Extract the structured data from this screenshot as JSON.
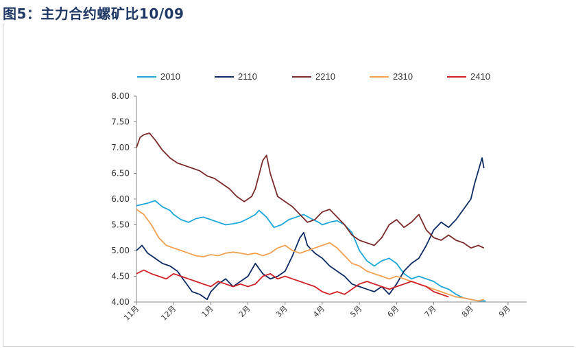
{
  "title": "图5：主力合约螺矿比10/09",
  "chart_data": {
    "type": "line",
    "title": "主力合约螺矿比10/09",
    "xlabel": "",
    "ylabel": "",
    "ylim": [
      4.0,
      8.0
    ],
    "yticks": [
      "4.00",
      "4.50",
      "5.00",
      "5.50",
      "6.00",
      "6.50",
      "7.00",
      "7.50",
      "8.00"
    ],
    "x_tick_labels": [
      "11月",
      "12月",
      "1月",
      "2月",
      "3月",
      "4月",
      "5月",
      "6月",
      "7月",
      "8月",
      "9月"
    ],
    "x_range_months": [
      0,
      10.5
    ],
    "legend_position": "top",
    "series": [
      {
        "name": "2010",
        "color": "#1aa7d8",
        "points": [
          [
            0,
            5.87
          ],
          [
            0.3,
            5.92
          ],
          [
            0.5,
            5.97
          ],
          [
            0.7,
            5.85
          ],
          [
            0.9,
            5.78
          ],
          [
            1.0,
            5.7
          ],
          [
            1.2,
            5.6
          ],
          [
            1.4,
            5.55
          ],
          [
            1.6,
            5.62
          ],
          [
            1.8,
            5.65
          ],
          [
            2.0,
            5.6
          ],
          [
            2.2,
            5.55
          ],
          [
            2.4,
            5.5
          ],
          [
            2.6,
            5.52
          ],
          [
            2.8,
            5.55
          ],
          [
            3.0,
            5.62
          ],
          [
            3.2,
            5.7
          ],
          [
            3.3,
            5.78
          ],
          [
            3.5,
            5.65
          ],
          [
            3.7,
            5.45
          ],
          [
            3.9,
            5.5
          ],
          [
            4.1,
            5.6
          ],
          [
            4.3,
            5.65
          ],
          [
            4.5,
            5.7
          ],
          [
            4.7,
            5.62
          ],
          [
            4.9,
            5.55
          ],
          [
            5.0,
            5.5
          ],
          [
            5.2,
            5.55
          ],
          [
            5.4,
            5.58
          ],
          [
            5.6,
            5.5
          ],
          [
            5.8,
            5.35
          ],
          [
            6.0,
            5.0
          ],
          [
            6.2,
            4.8
          ],
          [
            6.4,
            4.7
          ],
          [
            6.6,
            4.8
          ],
          [
            6.8,
            4.85
          ],
          [
            7.0,
            4.75
          ],
          [
            7.2,
            4.55
          ],
          [
            7.4,
            4.45
          ],
          [
            7.6,
            4.5
          ],
          [
            7.8,
            4.45
          ],
          [
            8.0,
            4.4
          ],
          [
            8.2,
            4.3
          ],
          [
            8.4,
            4.25
          ],
          [
            8.6,
            4.15
          ],
          [
            8.8,
            4.08
          ],
          [
            9.0,
            4.05
          ],
          [
            9.2,
            4.02
          ],
          [
            9.4,
            4.02
          ]
        ]
      },
      {
        "name": "2110",
        "color": "#0c2a63",
        "points": [
          [
            0,
            5.0
          ],
          [
            0.15,
            5.1
          ],
          [
            0.3,
            4.95
          ],
          [
            0.5,
            4.85
          ],
          [
            0.7,
            4.75
          ],
          [
            0.9,
            4.7
          ],
          [
            1.1,
            4.6
          ],
          [
            1.3,
            4.4
          ],
          [
            1.5,
            4.2
          ],
          [
            1.7,
            4.15
          ],
          [
            1.9,
            4.05
          ],
          [
            2.0,
            4.2
          ],
          [
            2.2,
            4.35
          ],
          [
            2.4,
            4.45
          ],
          [
            2.6,
            4.3
          ],
          [
            2.8,
            4.4
          ],
          [
            3.0,
            4.5
          ],
          [
            3.2,
            4.75
          ],
          [
            3.4,
            4.55
          ],
          [
            3.6,
            4.45
          ],
          [
            3.8,
            4.5
          ],
          [
            4.0,
            4.6
          ],
          [
            4.2,
            4.9
          ],
          [
            4.4,
            5.25
          ],
          [
            4.5,
            5.35
          ],
          [
            4.6,
            5.1
          ],
          [
            4.8,
            4.95
          ],
          [
            5.0,
            4.85
          ],
          [
            5.2,
            4.7
          ],
          [
            5.4,
            4.6
          ],
          [
            5.6,
            4.5
          ],
          [
            5.8,
            4.35
          ],
          [
            6.0,
            4.3
          ],
          [
            6.2,
            4.25
          ],
          [
            6.4,
            4.2
          ],
          [
            6.6,
            4.3
          ],
          [
            6.8,
            4.15
          ],
          [
            7.0,
            4.35
          ],
          [
            7.2,
            4.6
          ],
          [
            7.4,
            4.75
          ],
          [
            7.6,
            4.85
          ],
          [
            7.8,
            5.1
          ],
          [
            8.0,
            5.4
          ],
          [
            8.2,
            5.55
          ],
          [
            8.4,
            5.45
          ],
          [
            8.6,
            5.6
          ],
          [
            8.8,
            5.8
          ],
          [
            9.0,
            6.0
          ],
          [
            9.1,
            6.3
          ],
          [
            9.2,
            6.55
          ],
          [
            9.3,
            6.8
          ],
          [
            9.35,
            6.6
          ]
        ]
      },
      {
        "name": "2210",
        "color": "#7b2a2a",
        "points": [
          [
            0,
            7.0
          ],
          [
            0.1,
            7.2
          ],
          [
            0.2,
            7.25
          ],
          [
            0.35,
            7.28
          ],
          [
            0.5,
            7.15
          ],
          [
            0.7,
            6.95
          ],
          [
            0.9,
            6.8
          ],
          [
            1.1,
            6.7
          ],
          [
            1.3,
            6.65
          ],
          [
            1.5,
            6.6
          ],
          [
            1.7,
            6.55
          ],
          [
            1.9,
            6.45
          ],
          [
            2.1,
            6.4
          ],
          [
            2.3,
            6.3
          ],
          [
            2.5,
            6.2
          ],
          [
            2.7,
            6.05
          ],
          [
            2.9,
            5.95
          ],
          [
            3.1,
            6.05
          ],
          [
            3.2,
            6.2
          ],
          [
            3.4,
            6.75
          ],
          [
            3.5,
            6.85
          ],
          [
            3.6,
            6.5
          ],
          [
            3.8,
            6.05
          ],
          [
            4.0,
            5.95
          ],
          [
            4.2,
            5.85
          ],
          [
            4.4,
            5.7
          ],
          [
            4.6,
            5.55
          ],
          [
            4.8,
            5.6
          ],
          [
            5.0,
            5.75
          ],
          [
            5.2,
            5.8
          ],
          [
            5.4,
            5.65
          ],
          [
            5.6,
            5.5
          ],
          [
            5.8,
            5.3
          ],
          [
            6.0,
            5.2
          ],
          [
            6.2,
            5.15
          ],
          [
            6.4,
            5.1
          ],
          [
            6.6,
            5.25
          ],
          [
            6.8,
            5.5
          ],
          [
            7.0,
            5.6
          ],
          [
            7.2,
            5.45
          ],
          [
            7.4,
            5.55
          ],
          [
            7.6,
            5.7
          ],
          [
            7.8,
            5.4
          ],
          [
            8.0,
            5.25
          ],
          [
            8.2,
            5.2
          ],
          [
            8.4,
            5.3
          ],
          [
            8.6,
            5.2
          ],
          [
            8.8,
            5.15
          ],
          [
            9.0,
            5.05
          ],
          [
            9.2,
            5.1
          ],
          [
            9.35,
            5.05
          ]
        ]
      },
      {
        "name": "2310",
        "color": "#f0a050",
        "points": [
          [
            0,
            5.8
          ],
          [
            0.2,
            5.7
          ],
          [
            0.4,
            5.5
          ],
          [
            0.6,
            5.25
          ],
          [
            0.8,
            5.1
          ],
          [
            1.0,
            5.05
          ],
          [
            1.2,
            5.0
          ],
          [
            1.4,
            4.95
          ],
          [
            1.6,
            4.9
          ],
          [
            1.8,
            4.88
          ],
          [
            2.0,
            4.92
          ],
          [
            2.2,
            4.9
          ],
          [
            2.4,
            4.95
          ],
          [
            2.6,
            4.97
          ],
          [
            2.8,
            4.95
          ],
          [
            3.0,
            4.92
          ],
          [
            3.2,
            4.95
          ],
          [
            3.4,
            4.9
          ],
          [
            3.6,
            4.95
          ],
          [
            3.8,
            5.05
          ],
          [
            4.0,
            5.1
          ],
          [
            4.2,
            5.0
          ],
          [
            4.4,
            4.95
          ],
          [
            4.6,
            5.0
          ],
          [
            4.8,
            5.05
          ],
          [
            5.0,
            5.1
          ],
          [
            5.2,
            5.15
          ],
          [
            5.4,
            5.05
          ],
          [
            5.6,
            4.9
          ],
          [
            5.8,
            4.75
          ],
          [
            6.0,
            4.7
          ],
          [
            6.2,
            4.6
          ],
          [
            6.4,
            4.55
          ],
          [
            6.6,
            4.5
          ],
          [
            6.8,
            4.45
          ],
          [
            7.0,
            4.5
          ],
          [
            7.2,
            4.45
          ],
          [
            7.4,
            4.4
          ],
          [
            7.6,
            4.35
          ],
          [
            7.8,
            4.3
          ],
          [
            8.0,
            4.25
          ],
          [
            8.2,
            4.2
          ],
          [
            8.4,
            4.15
          ],
          [
            8.6,
            4.1
          ],
          [
            8.8,
            4.08
          ],
          [
            9.0,
            4.05
          ],
          [
            9.2,
            4.02
          ],
          [
            9.35,
            4.05
          ]
        ]
      },
      {
        "name": "2410",
        "color": "#d11f26",
        "points": [
          [
            0,
            4.55
          ],
          [
            0.2,
            4.62
          ],
          [
            0.4,
            4.55
          ],
          [
            0.6,
            4.5
          ],
          [
            0.8,
            4.45
          ],
          [
            1.0,
            4.55
          ],
          [
            1.2,
            4.5
          ],
          [
            1.4,
            4.45
          ],
          [
            1.6,
            4.4
          ],
          [
            1.8,
            4.35
          ],
          [
            2.0,
            4.3
          ],
          [
            2.2,
            4.4
          ],
          [
            2.4,
            4.35
          ],
          [
            2.6,
            4.3
          ],
          [
            2.8,
            4.35
          ],
          [
            3.0,
            4.3
          ],
          [
            3.2,
            4.35
          ],
          [
            3.4,
            4.5
          ],
          [
            3.6,
            4.55
          ],
          [
            3.8,
            4.45
          ],
          [
            4.0,
            4.5
          ],
          [
            4.2,
            4.45
          ],
          [
            4.4,
            4.4
          ],
          [
            4.6,
            4.35
          ],
          [
            4.8,
            4.3
          ],
          [
            5.0,
            4.2
          ],
          [
            5.2,
            4.15
          ],
          [
            5.4,
            4.2
          ],
          [
            5.6,
            4.15
          ],
          [
            5.8,
            4.25
          ],
          [
            6.0,
            4.35
          ],
          [
            6.2,
            4.4
          ],
          [
            6.4,
            4.35
          ],
          [
            6.6,
            4.3
          ],
          [
            6.8,
            4.25
          ],
          [
            7.0,
            4.3
          ],
          [
            7.2,
            4.35
          ],
          [
            7.4,
            4.4
          ],
          [
            7.6,
            4.35
          ],
          [
            7.8,
            4.3
          ],
          [
            8.0,
            4.2
          ],
          [
            8.2,
            4.15
          ],
          [
            8.4,
            4.1
          ]
        ]
      }
    ]
  }
}
